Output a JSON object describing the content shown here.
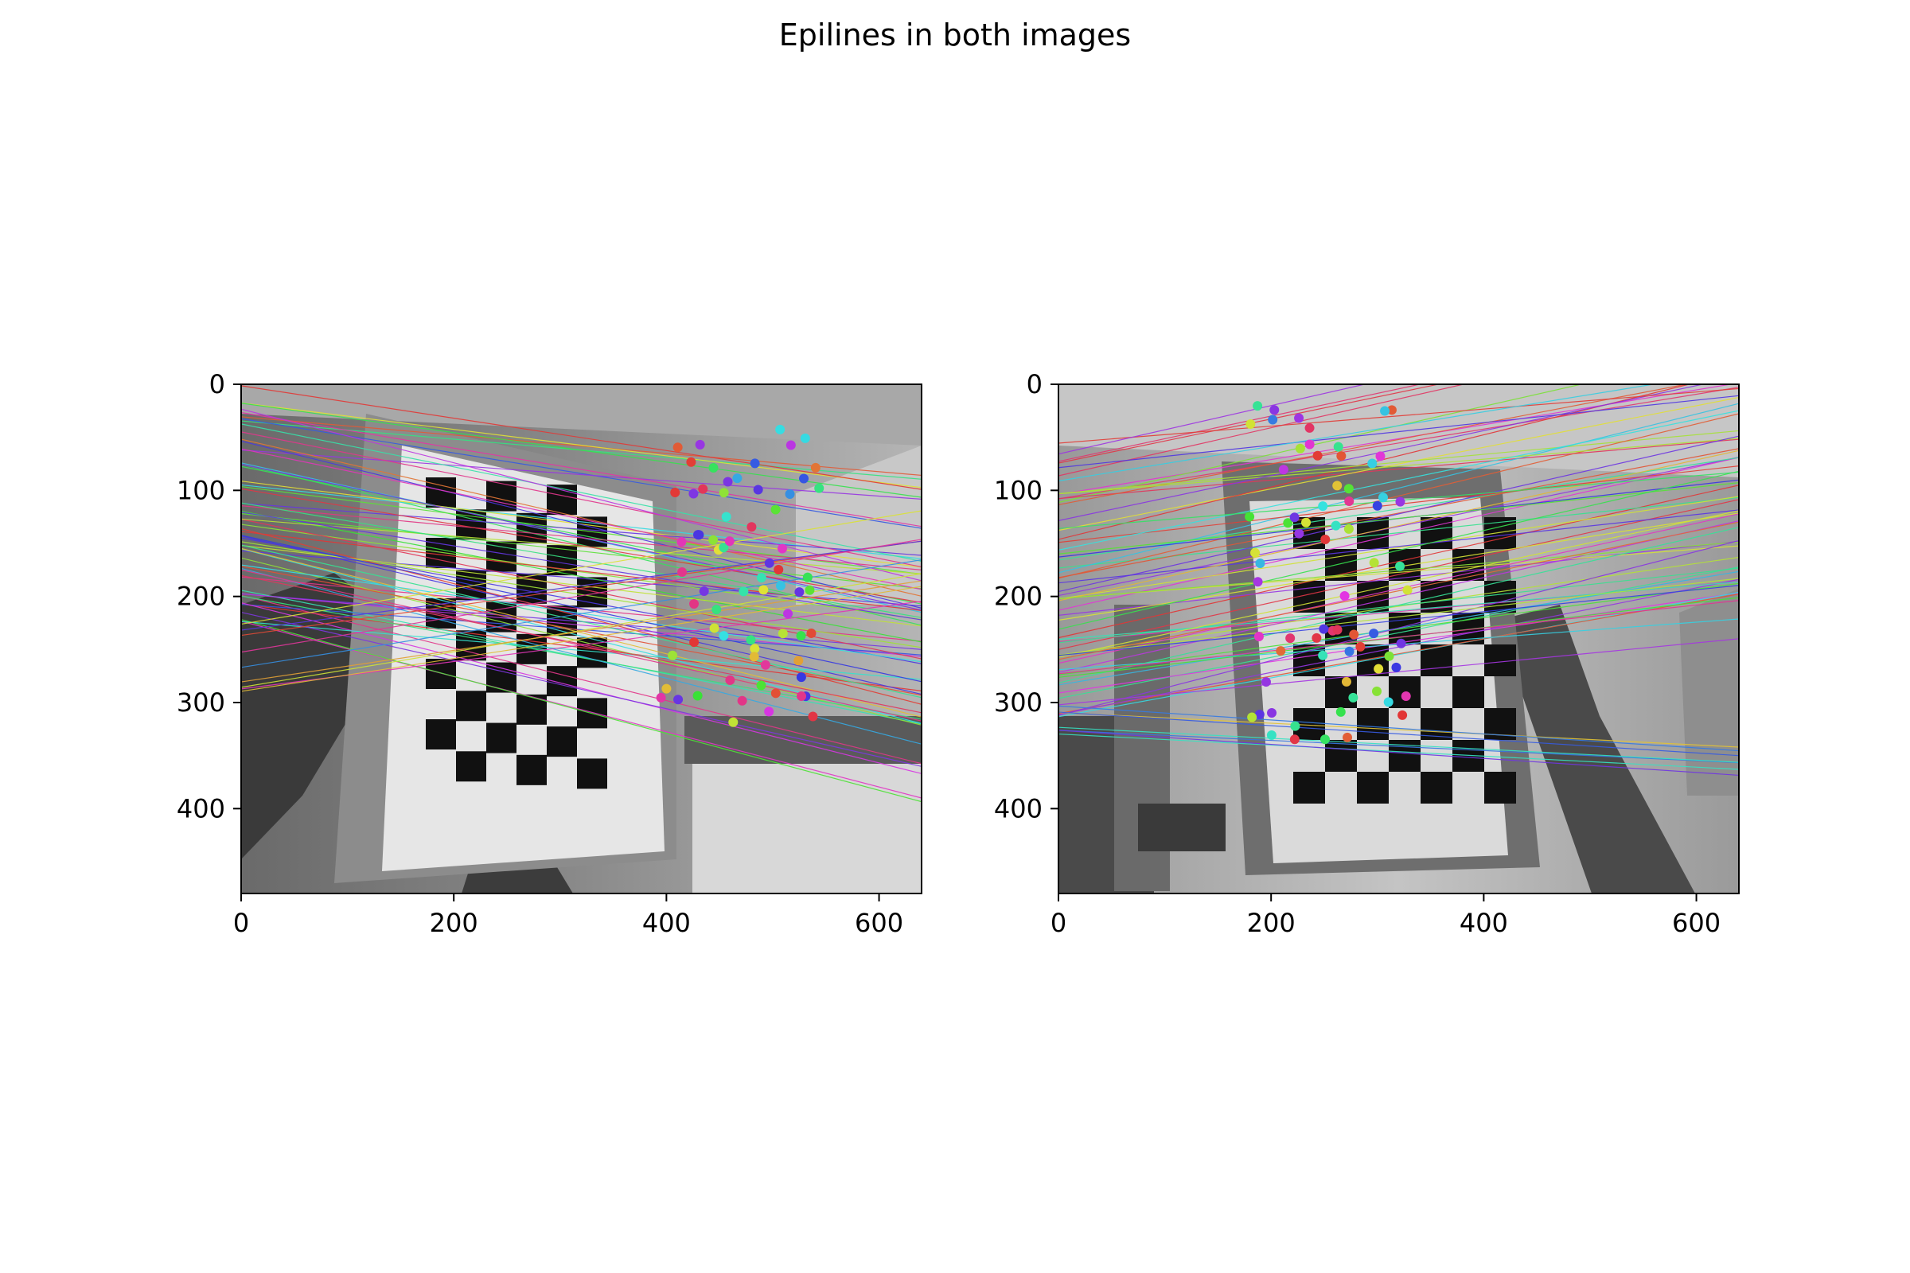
{
  "title": "Epilines in both images",
  "colors": {
    "background": "#ffffff",
    "axis": "#000000",
    "tick_text": "#000000"
  },
  "panels": [
    {
      "name": "left-image",
      "xlim": [
        0,
        640
      ],
      "ylim": [
        480,
        0
      ],
      "x_ticks": [
        "0",
        "200",
        "400",
        "600"
      ],
      "y_ticks": [
        "0",
        "100",
        "200",
        "300",
        "400"
      ]
    },
    {
      "name": "right-image",
      "xlim": [
        0,
        640
      ],
      "ylim": [
        480,
        0
      ],
      "x_ticks": [
        "0",
        "200",
        "400",
        "600"
      ],
      "y_ticks": [
        "0",
        "100",
        "200",
        "300",
        "400"
      ]
    }
  ]
}
